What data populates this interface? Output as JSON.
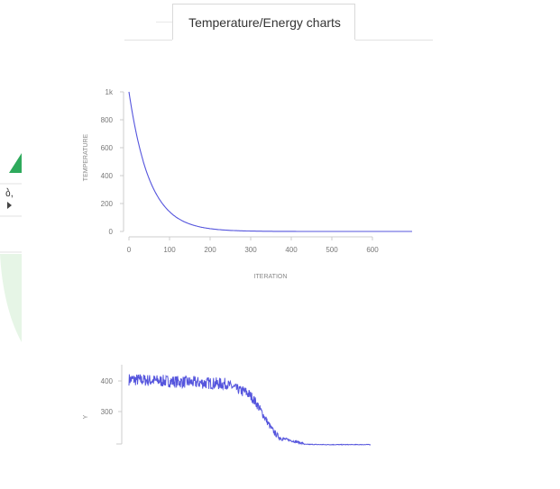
{
  "tab": {
    "title": "Temperature/Energy charts"
  },
  "left_panel": {
    "fragment_text": "ბ,"
  },
  "colors": {
    "series": "#5555dd",
    "axis": "#cccccc",
    "tick_text": "#777777",
    "accent_green": "#2eaa5c",
    "light_green": "#e4f4e4"
  },
  "charts": [
    {
      "chart_data": {
        "type": "line",
        "xlabel": "ITERATION",
        "ylabel": "TEMPERATURE",
        "x_ticks": [
          "0",
          "100",
          "200",
          "300",
          "400",
          "500",
          "600"
        ],
        "y_ticks": [
          "0",
          "200",
          "400",
          "600",
          "800",
          "1k"
        ],
        "xlim": [
          0,
          700
        ],
        "ylim": [
          0,
          1000
        ],
        "series": [
          {
            "start": 1000,
            "decay_per_iteration": 0.0195,
            "n": 700
          }
        ]
      }
    },
    {
      "chart_data": {
        "type": "line",
        "xlabel": "",
        "ylabel": "Y",
        "y_ticks": [
          "300",
          "400"
        ],
        "xlim": [
          0,
          620
        ],
        "ylim": [
          190,
          450
        ],
        "series": [
          {
            "plateau": 405,
            "noise": 20,
            "drop_start": 300,
            "drop_end": 400,
            "final": 192,
            "n": 620
          }
        ]
      }
    }
  ]
}
